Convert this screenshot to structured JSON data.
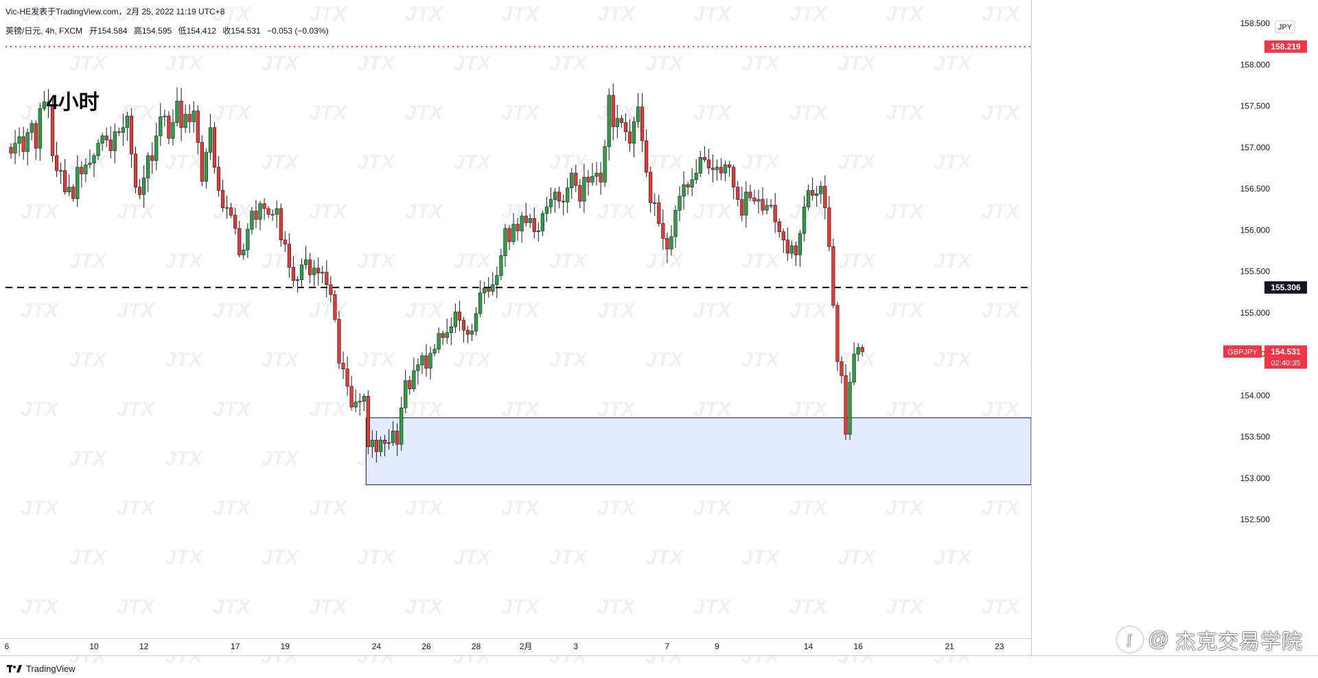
{
  "header": {
    "publisher": "Vic-HE发表于TradingView.com，2月 25, 2022 11:19 UTC+8",
    "symbol_line": "英镑/日元, 4h, FXCM",
    "open_label": "开",
    "open": "154.584",
    "high_label": "高",
    "high": "154.595",
    "low_label": "低",
    "low": "154.412",
    "close_label": "收",
    "close": "154.531",
    "change": "−0.053 (−0.03%)"
  },
  "annotation_title": "4小时",
  "footer": {
    "logo_text": "TradingView"
  },
  "credit": {
    "text": "杰克交易学院"
  },
  "colors": {
    "up": "#26a69a",
    "down": "#ef5350",
    "up_body": "#2ea043",
    "down_body": "#e53935",
    "zone_fill": "#e3ebff",
    "red_line": "#f23645"
  },
  "chart_data": {
    "type": "candlestick",
    "symbol": "GBPJPY",
    "currency": "JPY",
    "ylim": [
      152.5,
      158.6
    ],
    "y_ticks": [
      "152.500",
      "153.000",
      "153.500",
      "154.000",
      "154.500",
      "155.000",
      "155.500",
      "156.000",
      "156.500",
      "157.000",
      "157.500",
      "158.000",
      "158.500"
    ],
    "x_ticks": [
      {
        "label": "6",
        "i": -1
      },
      {
        "label": "10",
        "i": 20
      },
      {
        "label": "12",
        "i": 32
      },
      {
        "label": "17",
        "i": 54
      },
      {
        "label": "19",
        "i": 66
      },
      {
        "label": "24",
        "i": 88
      },
      {
        "label": "26",
        "i": 100
      },
      {
        "label": "28",
        "i": 112
      },
      {
        "label": "2月",
        "i": 124
      },
      {
        "label": "3",
        "i": 136
      },
      {
        "label": "7",
        "i": 158
      },
      {
        "label": "9",
        "i": 170
      },
      {
        "label": "14",
        "i": 192
      },
      {
        "label": "16",
        "i": 204
      },
      {
        "label": "21",
        "i": 226
      },
      {
        "label": "23",
        "i": 238
      }
    ],
    "levels": [
      {
        "price": 158.219,
        "label": "158.219",
        "style": "dotted-red"
      },
      {
        "price": 155.306,
        "label": "155.306",
        "style": "dashed-black"
      }
    ],
    "current": {
      "symbol": "GBPJPY",
      "price": "154.531",
      "countdown": "02:40:35"
    },
    "zone": {
      "from_i": 86,
      "top": 153.73,
      "bottom": 152.92
    },
    "closes": [
      156.93,
      157.05,
      157.13,
      156.95,
      157.18,
      157.29,
      156.99,
      157.47,
      157.55,
      157.5,
      156.9,
      156.72,
      156.72,
      156.46,
      156.52,
      156.38,
      156.76,
      156.68,
      156.79,
      156.81,
      156.9,
      157.05,
      157.14,
      157.09,
      156.96,
      157.19,
      157.18,
      157.24,
      157.38,
      156.92,
      156.52,
      156.43,
      156.63,
      156.9,
      156.84,
      157.14,
      157.37,
      157.38,
      157.11,
      157.3,
      157.56,
      157.24,
      157.4,
      157.31,
      157.44,
      157.06,
      156.59,
      156.94,
      157.24,
      156.76,
      156.48,
      156.27,
      156.27,
      156.18,
      156.02,
      155.7,
      155.76,
      156.01,
      156.23,
      156.13,
      156.32,
      156.26,
      156.19,
      156.19,
      156.26,
      155.88,
      155.83,
      155.55,
      155.39,
      155.4,
      155.58,
      155.64,
      155.46,
      155.54,
      155.48,
      155.49,
      155.34,
      155.22,
      154.92,
      154.39,
      154.32,
      154.11,
      153.86,
      153.92,
      153.93,
      153.99,
      153.38,
      153.46,
      153.32,
      153.46,
      153.42,
      153.43,
      153.57,
      153.41,
      153.85,
      154.18,
      154.08,
      154.3,
      154.37,
      154.48,
      154.33,
      154.51,
      154.56,
      154.75,
      154.7,
      154.76,
      154.83,
      155.01,
      154.91,
      154.79,
      154.74,
      154.78,
      154.99,
      155.24,
      155.3,
      155.26,
      155.34,
      155.45,
      155.69,
      156.02,
      155.86,
      156.07,
      155.99,
      156.17,
      156.09,
      156.14,
      155.98,
      155.99,
      156.2,
      156.28,
      156.37,
      156.46,
      156.35,
      156.34,
      156.51,
      156.69,
      156.54,
      156.35,
      156.64,
      156.58,
      156.65,
      156.69,
      156.58,
      157.01,
      157.63,
      157.25,
      157.35,
      157.3,
      157.19,
      157.05,
      157.31,
      157.49,
      157.08,
      156.7,
      156.33,
      156.33,
      156.08,
      155.9,
      155.77,
      155.92,
      156.24,
      156.41,
      156.55,
      156.52,
      156.61,
      156.69,
      156.88,
      156.85,
      156.75,
      156.73,
      156.76,
      156.69,
      156.79,
      156.76,
      156.52,
      156.37,
      156.18,
      156.46,
      156.39,
      156.35,
      156.37,
      156.24,
      156.3,
      156.3,
      156.1,
      155.98,
      155.88,
      155.72,
      155.81,
      155.7,
      155.96,
      156.28,
      156.48,
      156.42,
      156.44,
      156.53,
      156.27,
      155.8,
      155.09,
      154.41,
      154.24,
      153.53,
      154.16,
      154.5,
      154.58,
      154.53
    ]
  }
}
